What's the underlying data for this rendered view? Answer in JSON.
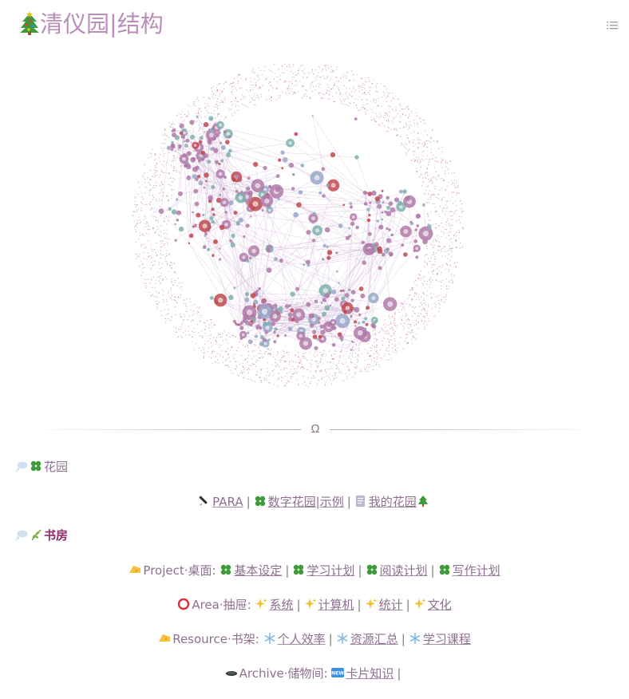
{
  "page": {
    "title": "清仪园|结构"
  },
  "icons": {
    "title": "christmas-tree-icon",
    "toc": "list-icon"
  },
  "divider": {
    "symbol": "Ω"
  },
  "garden": {
    "heading": "花园",
    "links": [
      "PARA",
      "数字花园|示例",
      "我的花园"
    ]
  },
  "study": {
    "heading": "书房"
  },
  "project": {
    "label": "Project·桌面:",
    "links": [
      "基本设定",
      "学习计划",
      "阅读计划",
      "写作计划"
    ]
  },
  "area": {
    "label": "Area·抽屉:",
    "links": [
      "系统",
      "计算机",
      "统计",
      "文化"
    ]
  },
  "resource": {
    "label": "Resource·书架:",
    "links": [
      "个人效率",
      "资源汇总",
      "学习课程"
    ]
  },
  "archive": {
    "label": "Archive·储物间:",
    "links": [
      "卡片知识"
    ]
  },
  "colors": {
    "title": "#b98fb9",
    "text": "#8e6f90",
    "study_heading": "#8b2d6a",
    "node_purple": "#b07aa8",
    "node_red": "#c0484f",
    "node_teal": "#7fb0b0",
    "node_blue": "#98a8c8"
  }
}
